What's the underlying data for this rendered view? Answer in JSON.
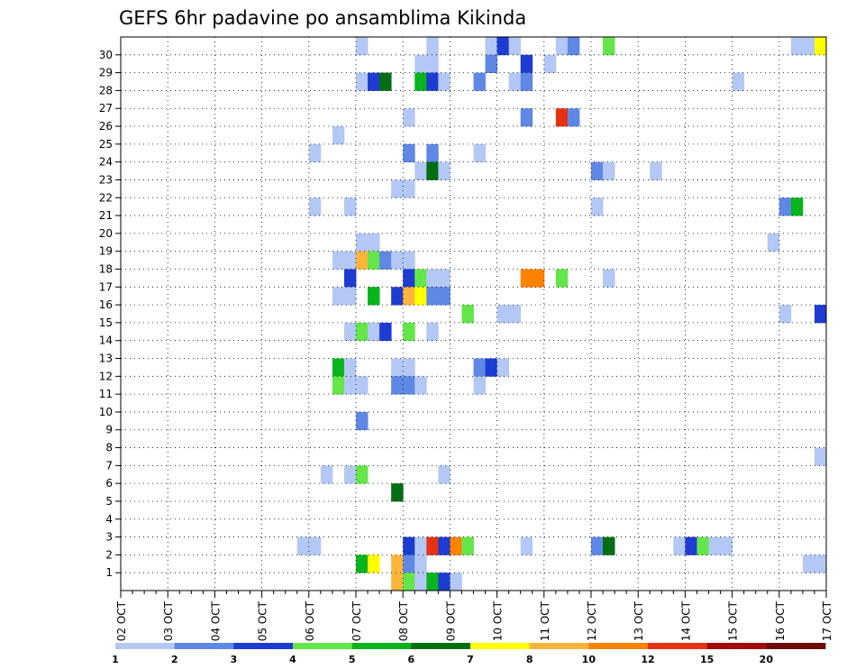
{
  "chart_data": {
    "type": "heatmap",
    "title": "GEFS 6hr padavine po ansamblima Kikinda",
    "xlabel": "",
    "ylabel": "",
    "x_ticks": [
      "02 OCT",
      "03 OCT",
      "04 OCT",
      "05 OCT",
      "06 OCT",
      "07 OCT",
      "08 OCT",
      "09 OCT",
      "10 OCT",
      "11 OCT",
      "12 OCT",
      "13 OCT",
      "14 OCT",
      "15 OCT",
      "16 OCT",
      "17 OCT"
    ],
    "y_ticks": [
      1,
      2,
      3,
      4,
      5,
      6,
      7,
      8,
      9,
      10,
      11,
      12,
      13,
      14,
      15,
      16,
      17,
      18,
      19,
      20,
      21,
      22,
      23,
      24,
      25,
      26,
      27,
      28,
      29,
      30
    ],
    "steps_per_day": 4,
    "n_steps": 60,
    "grid": true,
    "legend_position": "bottom",
    "legend": {
      "labels": [
        "1",
        "2",
        "3",
        "4",
        "5",
        "6",
        "7",
        "8",
        "10",
        "12",
        "15",
        "20"
      ],
      "colors": [
        "#b4c8f5",
        "#5f87e6",
        "#1e3cd2",
        "#64e64b",
        "#0ab41e",
        "#056e14",
        "#ffff00",
        "#ffb43c",
        "#ff8200",
        "#e63214",
        "#a00a0a",
        "#6e0a0a"
      ]
    },
    "cells": [
      [
        30,
        20,
        0
      ],
      [
        30,
        26,
        0
      ],
      [
        30,
        31,
        0
      ],
      [
        30,
        32,
        2
      ],
      [
        30,
        33,
        0
      ],
      [
        30,
        37,
        0
      ],
      [
        30,
        38,
        1
      ],
      [
        30,
        41,
        3
      ],
      [
        30,
        57,
        0
      ],
      [
        30,
        58,
        0
      ],
      [
        30,
        59,
        6
      ],
      [
        29,
        25,
        0
      ],
      [
        29,
        26,
        0
      ],
      [
        29,
        31,
        1
      ],
      [
        29,
        34,
        2
      ],
      [
        29,
        36,
        0
      ],
      [
        28,
        20,
        0
      ],
      [
        28,
        21,
        2
      ],
      [
        28,
        22,
        5
      ],
      [
        28,
        25,
        4
      ],
      [
        28,
        26,
        2
      ],
      [
        28,
        27,
        0
      ],
      [
        28,
        30,
        1
      ],
      [
        28,
        33,
        0
      ],
      [
        28,
        34,
        1
      ],
      [
        28,
        52,
        0
      ],
      [
        26,
        24,
        0
      ],
      [
        26,
        34,
        1
      ],
      [
        26,
        37,
        9
      ],
      [
        26,
        38,
        1
      ],
      [
        25,
        18,
        0
      ],
      [
        24,
        16,
        0
      ],
      [
        24,
        24,
        1
      ],
      [
        24,
        26,
        1
      ],
      [
        24,
        30,
        0
      ],
      [
        23,
        25,
        0
      ],
      [
        23,
        26,
        5
      ],
      [
        23,
        27,
        0
      ],
      [
        23,
        40,
        1
      ],
      [
        23,
        41,
        0
      ],
      [
        23,
        45,
        0
      ],
      [
        22,
        23,
        0
      ],
      [
        22,
        24,
        0
      ],
      [
        21,
        16,
        0
      ],
      [
        21,
        19,
        0
      ],
      [
        21,
        40,
        0
      ],
      [
        21,
        56,
        1
      ],
      [
        21,
        57,
        4
      ],
      [
        19,
        20,
        0
      ],
      [
        19,
        21,
        0
      ],
      [
        19,
        55,
        0
      ],
      [
        18,
        18,
        0
      ],
      [
        18,
        19,
        0
      ],
      [
        18,
        20,
        7
      ],
      [
        18,
        21,
        3
      ],
      [
        18,
        22,
        1
      ],
      [
        18,
        23,
        0
      ],
      [
        18,
        24,
        0
      ],
      [
        17,
        19,
        2
      ],
      [
        17,
        24,
        2
      ],
      [
        17,
        25,
        3
      ],
      [
        17,
        26,
        0
      ],
      [
        17,
        27,
        0
      ],
      [
        17,
        34,
        8
      ],
      [
        17,
        35,
        8
      ],
      [
        17,
        37,
        3
      ],
      [
        17,
        41,
        0
      ],
      [
        16,
        18,
        0
      ],
      [
        16,
        19,
        0
      ],
      [
        16,
        21,
        4
      ],
      [
        16,
        23,
        2
      ],
      [
        16,
        24,
        7
      ],
      [
        16,
        25,
        6
      ],
      [
        16,
        26,
        1
      ],
      [
        16,
        27,
        1
      ],
      [
        15,
        29,
        3
      ],
      [
        15,
        32,
        0
      ],
      [
        15,
        33,
        0
      ],
      [
        15,
        56,
        0
      ],
      [
        15,
        59,
        2
      ],
      [
        14,
        19,
        0
      ],
      [
        14,
        20,
        3
      ],
      [
        14,
        21,
        0
      ],
      [
        14,
        22,
        2
      ],
      [
        14,
        24,
        3
      ],
      [
        14,
        26,
        0
      ],
      [
        12,
        18,
        4
      ],
      [
        12,
        19,
        0
      ],
      [
        12,
        23,
        0
      ],
      [
        12,
        24,
        0
      ],
      [
        12,
        30,
        1
      ],
      [
        12,
        31,
        2
      ],
      [
        12,
        32,
        0
      ],
      [
        11,
        18,
        3
      ],
      [
        11,
        19,
        0
      ],
      [
        11,
        20,
        0
      ],
      [
        11,
        23,
        1
      ],
      [
        11,
        24,
        1
      ],
      [
        11,
        25,
        0
      ],
      [
        11,
        30,
        0
      ],
      [
        9,
        20,
        1
      ],
      [
        7,
        59,
        0
      ],
      [
        6,
        17,
        0
      ],
      [
        6,
        19,
        0
      ],
      [
        6,
        20,
        3
      ],
      [
        6,
        27,
        0
      ],
      [
        5,
        23,
        5
      ],
      [
        2,
        15,
        0
      ],
      [
        2,
        16,
        0
      ],
      [
        2,
        24,
        2
      ],
      [
        2,
        25,
        0
      ],
      [
        2,
        26,
        9
      ],
      [
        2,
        27,
        2
      ],
      [
        2,
        28,
        8
      ],
      [
        2,
        29,
        3
      ],
      [
        2,
        34,
        0
      ],
      [
        2,
        40,
        1
      ],
      [
        2,
        41,
        5
      ],
      [
        2,
        47,
        0
      ],
      [
        2,
        48,
        2
      ],
      [
        2,
        49,
        3
      ],
      [
        2,
        50,
        0
      ],
      [
        2,
        51,
        0
      ],
      [
        1,
        20,
        4
      ],
      [
        1,
        21,
        6
      ],
      [
        1,
        23,
        7
      ],
      [
        1,
        24,
        1
      ],
      [
        1,
        25,
        0
      ],
      [
        1,
        58,
        0
      ],
      [
        1,
        59,
        0
      ],
      [
        0,
        23,
        7
      ],
      [
        0,
        24,
        3
      ],
      [
        0,
        25,
        0
      ],
      [
        0,
        26,
        4
      ],
      [
        0,
        27,
        2
      ],
      [
        0,
        28,
        0
      ]
    ]
  }
}
